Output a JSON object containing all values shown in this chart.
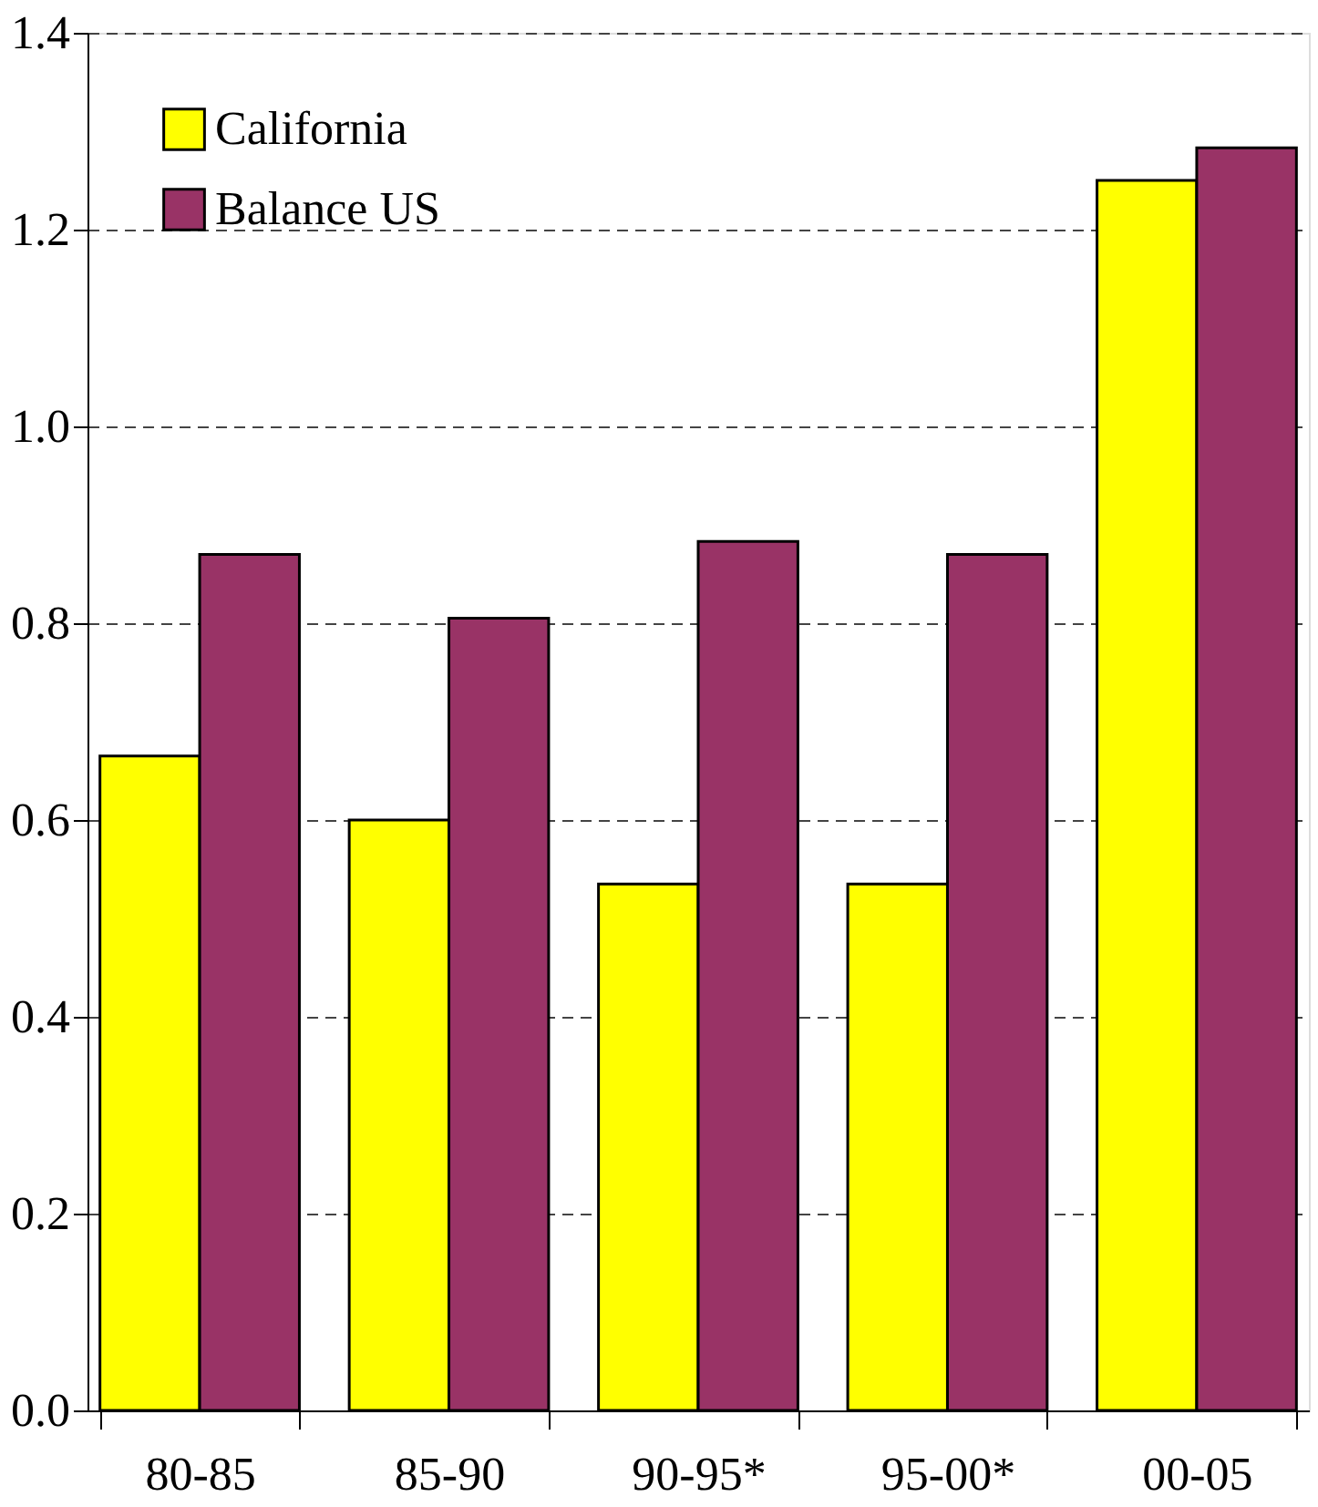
{
  "chart_data": {
    "type": "bar",
    "categories": [
      "80-85",
      "85-90",
      "90-95*",
      "95-00*",
      "00-05"
    ],
    "series": [
      {
        "name": "California",
        "color": "#ffff00",
        "values": [
          0.665,
          0.6,
          0.535,
          0.535,
          1.25
        ]
      },
      {
        "name": "Balance US",
        "color": "#993366",
        "values": [
          0.87,
          0.805,
          0.883,
          0.87,
          1.283
        ]
      }
    ],
    "ylim": [
      0,
      1.4
    ],
    "yticks": [
      {
        "value": 0,
        "label": "0.0"
      },
      {
        "value": 0.2,
        "label": "0.2"
      },
      {
        "value": 0.4,
        "label": "0.4"
      },
      {
        "value": 0.6,
        "label": "0.6"
      },
      {
        "value": 0.8,
        "label": "0.8"
      },
      {
        "value": 1.0,
        "label": "1.0"
      },
      {
        "value": 1.2,
        "label": "1.2"
      },
      {
        "value": 1.4,
        "label": "1.4"
      }
    ],
    "grid": "y",
    "legend": "top left"
  }
}
